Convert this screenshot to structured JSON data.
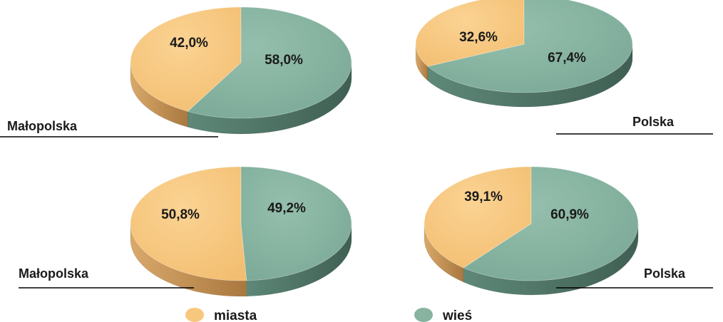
{
  "chart_data": [
    {
      "type": "pie",
      "label": "Małopolska",
      "categories": [
        "miasta",
        "wieś"
      ],
      "values": [
        42.0,
        58.0
      ],
      "value_labels": [
        "42,0%",
        "58,0%"
      ]
    },
    {
      "type": "pie",
      "label": "Polska",
      "categories": [
        "miasta",
        "wieś"
      ],
      "values": [
        32.6,
        67.4
      ],
      "value_labels": [
        "32,6%",
        "67,4%"
      ]
    },
    {
      "type": "pie",
      "label": "Małopolska",
      "categories": [
        "miasta",
        "wieś"
      ],
      "values": [
        50.8,
        49.2
      ],
      "value_labels": [
        "50,8%",
        "49,2%"
      ]
    },
    {
      "type": "pie",
      "label": "Polska",
      "categories": [
        "miasta",
        "wieś"
      ],
      "values": [
        39.1,
        60.9
      ],
      "value_labels": [
        "39,1%",
        "60,9%"
      ]
    }
  ],
  "legend": {
    "items": [
      {
        "label": "miasta",
        "color": "#f8c77e"
      },
      {
        "label": "wieś",
        "color": "#87b3a0"
      }
    ]
  },
  "colors": {
    "miasta_top": "#f8c77e",
    "miasta_side": "#c8975a",
    "wies_top": "#87b3a0",
    "wies_side": "#4f7568",
    "text": "#1a1a1a",
    "rule": "#000000"
  }
}
